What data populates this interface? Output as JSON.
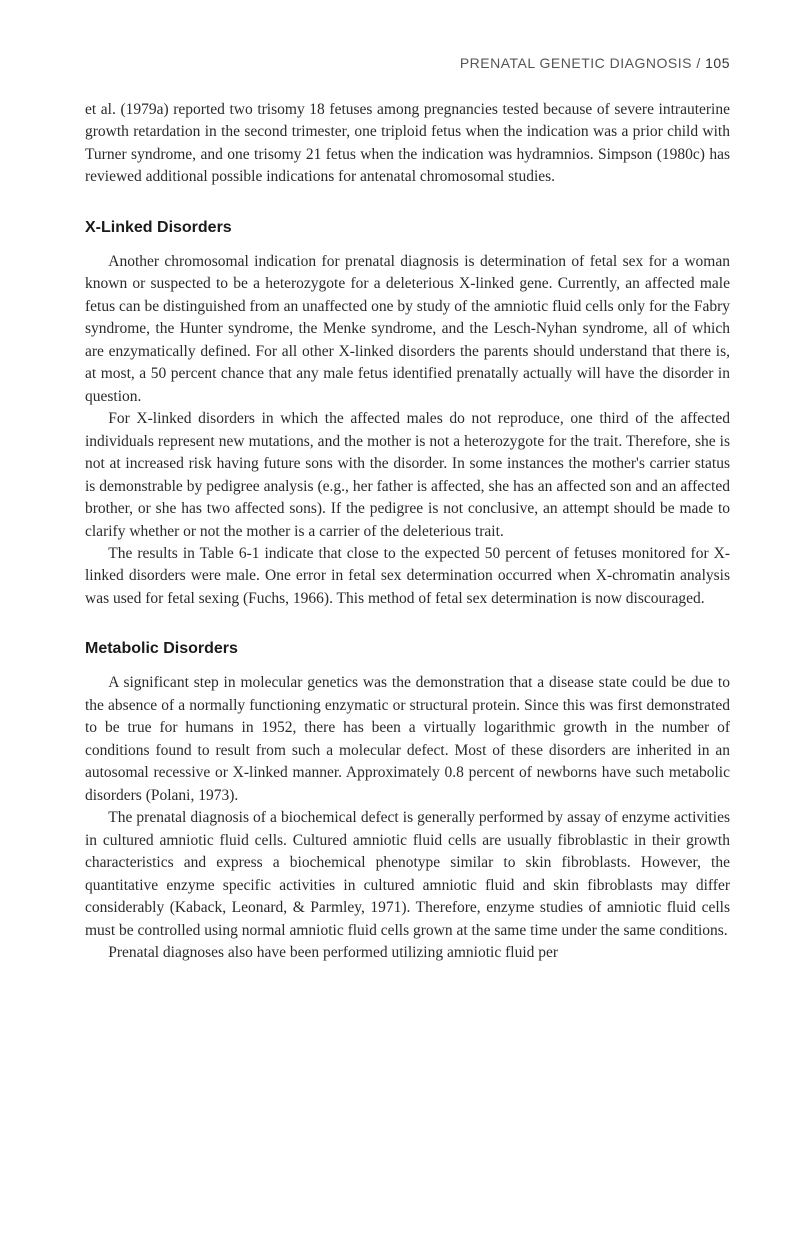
{
  "header": {
    "title": "PRENATAL GENETIC DIAGNOSIS",
    "separator": " / ",
    "pageNumber": "105"
  },
  "intro": {
    "p1": "et al. (1979a) reported two trisomy 18 fetuses among pregnancies tested because of severe intrauterine growth retardation in the second trimester, one triploid fetus when the indication was a prior child with Turner syndrome, and one trisomy 21 fetus when the indication was hydramnios. Simpson (1980c) has reviewed additional possible indications for antenatal chromosomal studies."
  },
  "section1": {
    "heading": "X-Linked Disorders",
    "p1": "Another chromosomal indication for prenatal diagnosis is determination of fetal sex for a woman known or suspected to be a heterozygote for a deleterious X-linked gene. Currently, an affected male fetus can be distinguished from an unaffected one by study of the amniotic fluid cells only for the Fabry syndrome, the Hunter syndrome, the Menke syndrome, and the Lesch-Nyhan syndrome, all of which are enzymatically defined. For all other X-linked disorders the parents should understand that there is, at most, a 50 percent chance that any male fetus identified prenatally actually will have the disorder in question.",
    "p2": "For X-linked disorders in which the affected males do not reproduce, one third of the affected individuals represent new mutations, and the mother is not a heterozygote for the trait. Therefore, she is not at increased risk having future sons with the disorder. In some instances the mother's carrier status is demonstrable by pedigree analysis (e.g., her father is affected, she has an affected son and an affected brother, or she has two affected sons). If the pedigree is not conclusive, an attempt should be made to clarify whether or not the mother is a carrier of the deleterious trait.",
    "p3": "The results in Table 6-1 indicate that close to the expected 50 percent of fetuses monitored for X-linked disorders were male. One error in fetal sex determination occurred when X-chromatin analysis was used for fetal sexing (Fuchs, 1966). This method of fetal sex determination is now discouraged."
  },
  "section2": {
    "heading": "Metabolic Disorders",
    "p1": "A significant step in molecular genetics was the demonstration that a disease state could be due to the absence of a normally functioning enzymatic or structural protein. Since this was first demonstrated to be true for humans in 1952, there has been a virtually logarithmic growth in the number of conditions found to result from such a molecular defect. Most of these disorders are inherited in an autosomal recessive or X-linked manner. Approximately 0.8 percent of newborns have such metabolic disorders (Polani, 1973).",
    "p2": "The prenatal diagnosis of a biochemical defect is generally performed by assay of enzyme activities in cultured amniotic fluid cells. Cultured amniotic fluid cells are usually fibroblastic in their growth characteristics and express a biochemical phenotype similar to skin fibroblasts. However, the quantitative enzyme specific activities in cultured amniotic fluid and skin fibroblasts may differ considerably (Kaback, Leonard, & Parmley, 1971). Therefore, enzyme studies of amniotic fluid cells must be controlled using normal amniotic fluid cells grown at the same time under the same conditions.",
    "p3": "Prenatal diagnoses also have been performed utilizing amniotic fluid per"
  }
}
